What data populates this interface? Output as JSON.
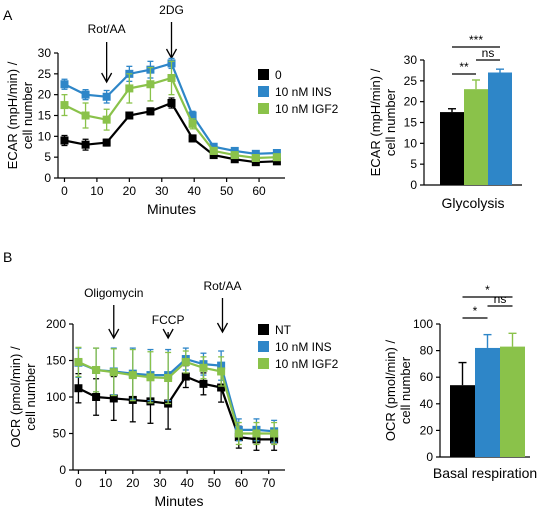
{
  "panels": {
    "a": {
      "letter": "A"
    },
    "b": {
      "letter": "B"
    }
  },
  "colors": {
    "black": "#000000",
    "ins": "#2e86c8",
    "igf2": "#8ac24a"
  },
  "chart_data": [
    {
      "id": "a-line",
      "type": "line",
      "ylabel": "ECAR (mpH/min) / cell number",
      "xlabel": "Minutes",
      "xlim": [
        -2,
        68
      ],
      "ylim": [
        0,
        30
      ],
      "xticks": [
        0,
        10,
        20,
        30,
        40,
        50,
        60
      ],
      "yticks": [
        0,
        5,
        10,
        15,
        20,
        25,
        30
      ],
      "annotations": [
        {
          "label": "Rot/AA",
          "x": 13
        },
        {
          "label": "2DG",
          "x": 33
        }
      ],
      "legend": "right",
      "series": [
        {
          "name": "0",
          "color": "#000000",
          "x": [
            0,
            6.5,
            13,
            20,
            26.5,
            33,
            39.5,
            46,
            52.5,
            59,
            65.5
          ],
          "y": [
            9,
            8,
            8.5,
            15,
            16,
            18,
            9.5,
            5.5,
            4.5,
            3.8,
            4
          ],
          "err": [
            1.2,
            1.3,
            0.8,
            0.8,
            0.8,
            1.2,
            0.8,
            0.6,
            0.5,
            0.4,
            0.5
          ]
        },
        {
          "name": "10 nM INS",
          "color": "#2e86c8",
          "x": [
            0,
            6.5,
            13,
            20,
            26.5,
            33,
            39.5,
            46,
            52.5,
            59,
            65.5
          ],
          "y": [
            22.5,
            20,
            19.5,
            25,
            26,
            27.5,
            15,
            7.5,
            6.5,
            5.8,
            6
          ],
          "err": [
            1.2,
            1.2,
            1.5,
            1.8,
            2,
            1.2,
            1,
            0.7,
            0.6,
            0.6,
            0.6
          ]
        },
        {
          "name": "10 nM IGF2",
          "color": "#8ac24a",
          "x": [
            0,
            6.5,
            13,
            20,
            26.5,
            33,
            39.5,
            46,
            52.5,
            59,
            65.5
          ],
          "y": [
            17.5,
            15,
            14,
            21.5,
            22.5,
            24,
            13,
            6.5,
            5.5,
            4.8,
            5
          ],
          "err": [
            2.5,
            3,
            2.5,
            3.5,
            4,
            4,
            1.2,
            0.8,
            0.6,
            0.6,
            0.6
          ]
        }
      ]
    },
    {
      "id": "a-bar",
      "type": "bar",
      "ylabel": "ECAR (mpH/min) / cell number",
      "xlabel": "Glycolysis",
      "ylim": [
        0,
        30
      ],
      "yticks": [
        0,
        5,
        10,
        15,
        20,
        25,
        30
      ],
      "series": [
        {
          "color": "#000000",
          "value": 17.5,
          "err": 0.8
        },
        {
          "color": "#8ac24a",
          "value": 23,
          "err": 2.2
        },
        {
          "color": "#2e86c8",
          "value": 27,
          "err": 0.8
        }
      ],
      "significance": [
        {
          "label": "***",
          "from": 0,
          "to": 2
        },
        {
          "label": "ns",
          "from": 1,
          "to": 2
        },
        {
          "label": "**",
          "from": 0,
          "to": 1
        }
      ]
    },
    {
      "id": "b-line",
      "type": "line",
      "ylabel": "OCR (pmol/min) / cell number",
      "xlabel": "Minutes",
      "xlim": [
        -2,
        76
      ],
      "ylim": [
        0,
        200
      ],
      "xticks": [
        0,
        10,
        20,
        30,
        40,
        50,
        60,
        70
      ],
      "yticks": [
        0,
        50,
        100,
        150,
        200
      ],
      "annotations": [
        {
          "label": "Oligomycin",
          "x": 13
        },
        {
          "label": "FCCP",
          "x": 33
        },
        {
          "label": "Rot/AA",
          "x": 53
        }
      ],
      "legend": "right",
      "series": [
        {
          "name": "NT",
          "color": "#000000",
          "x": [
            0,
            6.5,
            13,
            20,
            26.5,
            33,
            39.5,
            46,
            52.5,
            59,
            65.5,
            72
          ],
          "y": [
            112,
            100,
            98,
            96,
            94,
            91,
            128,
            118,
            113,
            45,
            42,
            42
          ],
          "err": [
            20,
            25,
            30,
            30,
            30,
            35,
            15,
            15,
            20,
            15,
            15,
            15
          ]
        },
        {
          "name": "10 nM INS",
          "color": "#2e86c8",
          "x": [
            0,
            6.5,
            13,
            20,
            26.5,
            33,
            39.5,
            46,
            52.5,
            59,
            65.5,
            72
          ],
          "y": [
            147,
            137,
            135,
            132,
            130,
            130,
            152,
            145,
            143,
            55,
            55,
            53
          ],
          "err": [
            20,
            30,
            32,
            35,
            35,
            35,
            15,
            15,
            20,
            15,
            15,
            15
          ]
        },
        {
          "name": "10 nM IGF2",
          "color": "#8ac24a",
          "x": [
            0,
            6.5,
            13,
            20,
            26.5,
            33,
            39.5,
            46,
            52.5,
            59,
            65.5,
            72
          ],
          "y": [
            148,
            137,
            134,
            130,
            127,
            126,
            148,
            140,
            135,
            50,
            50,
            50
          ],
          "err": [
            20,
            30,
            32,
            35,
            35,
            35,
            15,
            15,
            20,
            15,
            15,
            15
          ]
        }
      ]
    },
    {
      "id": "b-bar",
      "type": "bar",
      "ylabel": "OCR (pmol/min) / cell number",
      "xlabel": "Basal respiration",
      "ylim": [
        0,
        100
      ],
      "yticks": [
        0,
        20,
        40,
        60,
        80,
        100
      ],
      "series": [
        {
          "color": "#000000",
          "value": 54,
          "err": 17
        },
        {
          "color": "#2e86c8",
          "value": 82,
          "err": 10
        },
        {
          "color": "#8ac24a",
          "value": 83,
          "err": 10
        }
      ],
      "significance": [
        {
          "label": "*",
          "from": 0,
          "to": 2
        },
        {
          "label": "*",
          "from": 0,
          "to": 1
        },
        {
          "label": "ns",
          "from": 1,
          "to": 2
        }
      ]
    }
  ]
}
